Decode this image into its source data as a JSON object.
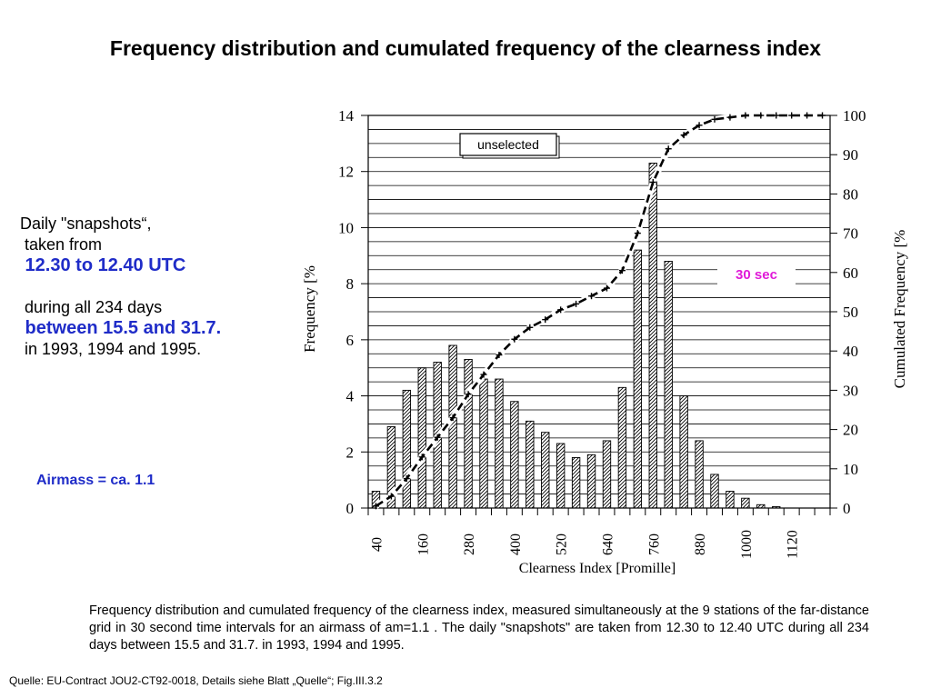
{
  "title": "Frequency distribution and cumulated frequency of the clearness index",
  "notes": {
    "line1": "Daily \"snapshots“,",
    "line2": " taken from",
    "line3": " 12.30 to 12.40 UTC",
    "line4": " during all 234 days",
    "line5": " between 15.5 and 31.7.",
    "line6": " in 1993, 1994 and 1995."
  },
  "airmass": "Airmass = ca. 1.1",
  "caption": "Frequency distribution and cumulated frequency of the clearness index, measured simultaneously at the 9 stations of the far-distance grid in 30 second time intervals for an airmass of am=1.1 . The daily \"snapshots\" are taken from 12.30 to 12.40 UTC during all 234 days between 15.5 and 31.7. in 1993, 1994 and 1995.",
  "source": "Quelle: EU-Contract JOU2-CT92-0018, Details siehe Blatt „Quelle“; Fig.III.3.2",
  "chart_data": {
    "type": "bar",
    "xlabel": "Clearness Index [Promille]",
    "ylabel": "Frequency [%",
    "y2label": "Cumulated Frequency [%",
    "legend": "unselected",
    "annotation": "30 sec",
    "ylim": [
      0,
      14
    ],
    "y2lim": [
      0,
      100
    ],
    "yticks": [
      0,
      2,
      4,
      6,
      8,
      10,
      12,
      14
    ],
    "y2ticks": [
      0,
      10,
      20,
      30,
      40,
      50,
      60,
      70,
      80,
      90,
      100
    ],
    "xtick_labels": [
      "40",
      "160",
      "280",
      "400",
      "520",
      "640",
      "760",
      "880",
      "1000",
      "1120"
    ],
    "bin_width": 40,
    "bin_centers": [
      20,
      60,
      100,
      140,
      180,
      220,
      260,
      300,
      340,
      380,
      420,
      460,
      500,
      540,
      580,
      620,
      660,
      700,
      740,
      780,
      820,
      860,
      900,
      940,
      980,
      1020,
      1060,
      1100,
      1140,
      1180
    ],
    "frequency": [
      0.6,
      2.9,
      4.2,
      5.0,
      5.2,
      5.8,
      5.3,
      4.6,
      4.6,
      3.8,
      3.1,
      2.7,
      2.3,
      1.8,
      1.9,
      2.4,
      4.3,
      9.2,
      12.3,
      8.8,
      4.0,
      2.4,
      1.2,
      0.6,
      0.35,
      0.12,
      0.05,
      0.0,
      0.0,
      0.0
    ],
    "cumulative_x": [
      20,
      60,
      100,
      140,
      180,
      220,
      260,
      300,
      340,
      380,
      420,
      460,
      500,
      540,
      580,
      620,
      660,
      700,
      740,
      780,
      820,
      860,
      900,
      940,
      980,
      1020,
      1060,
      1100,
      1140,
      1180
    ],
    "cumulative": [
      0.5,
      3,
      7.5,
      13,
      18,
      23,
      29,
      34,
      39,
      43,
      46,
      48,
      50.5,
      52,
      54,
      56,
      60.5,
      70,
      83,
      91.5,
      95,
      97.5,
      99,
      99.5,
      100,
      100,
      100,
      100,
      100,
      100
    ],
    "grid": true
  }
}
